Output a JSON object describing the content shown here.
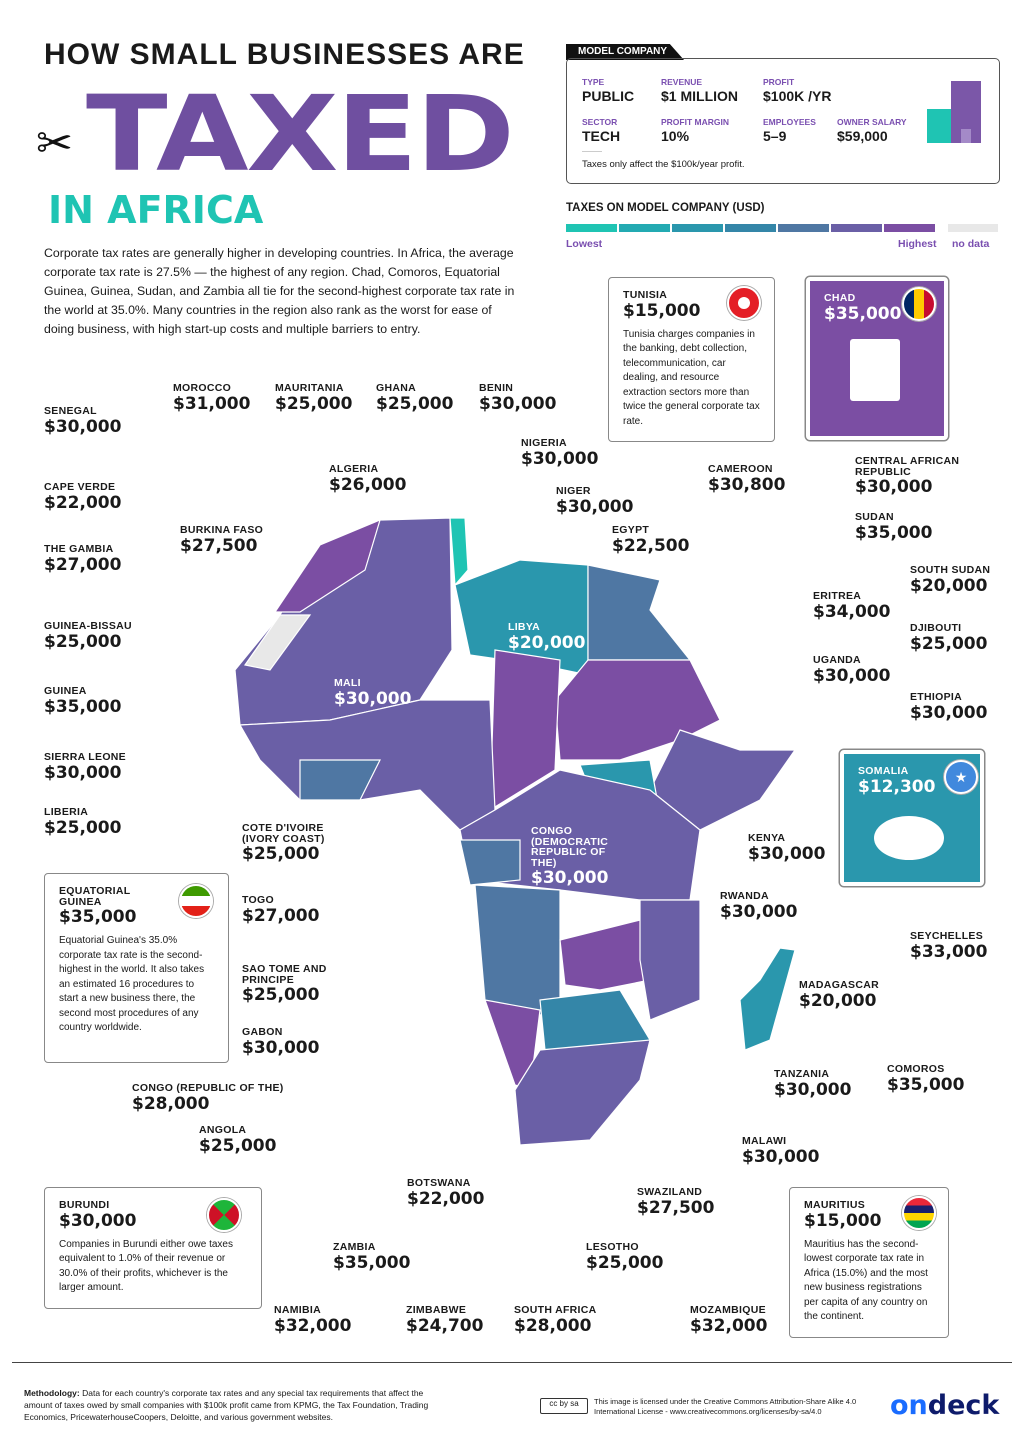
{
  "title": {
    "line1": "HOW SMALL BUSINESSES ARE",
    "line2": "TAXED",
    "line3": "IN AFRICA"
  },
  "intro": "Corporate tax rates are generally higher in developing countries. In Africa, the average corporate tax rate is 27.5% — the highest of any region. Chad, Comoros, Equatorial Guinea, Guinea, Sudan, and Zambia all tie for the second-highest corporate tax rate in the world at 35.0%. Many countries in the region also rank as the worst for ease of doing business, with high start-up costs and multiple barriers to entry.",
  "model_company": {
    "tab": "MODEL COMPANY",
    "fields": [
      {
        "label": "TYPE",
        "value": "PUBLIC"
      },
      {
        "label": "REVENUE",
        "value": "$1 MILLION"
      },
      {
        "label": "PROFIT",
        "value": "$100K /YR"
      },
      {
        "label": "SECTOR",
        "value": "TECH"
      },
      {
        "label": "PROFIT MARGIN",
        "value": "10%"
      },
      {
        "label": "EMPLOYEES",
        "value": "5–9"
      },
      {
        "label": "OWNER SALARY",
        "value": "$59,000"
      }
    ],
    "note": "Taxes only affect the $100k/year profit."
  },
  "legend": {
    "title": "TAXES ON MODEL COMPANY (USD)",
    "low": "Lowest",
    "high": "Highest",
    "nodata": "no data",
    "colors": [
      "#1fc4b3",
      "#23aab2",
      "#2a97ad",
      "#3486a8",
      "#4f77a3",
      "#6a5fa6",
      "#7b4ea3"
    ],
    "nodata_color": "#e8e8e8"
  },
  "countries": [
    {
      "name": "MOROCCO",
      "tax": "$31,000"
    },
    {
      "name": "MAURITANIA",
      "tax": "$25,000"
    },
    {
      "name": "GHANA",
      "tax": "$25,000"
    },
    {
      "name": "BENIN",
      "tax": "$30,000"
    },
    {
      "name": "SENEGAL",
      "tax": "$30,000"
    },
    {
      "name": "NIGERIA",
      "tax": "$30,000"
    },
    {
      "name": "ALGERIA",
      "tax": "$26,000"
    },
    {
      "name": "CAMEROON",
      "tax": "$30,800"
    },
    {
      "name": "CENTRAL AFRICAN REPUBLIC",
      "tax": "$30,000"
    },
    {
      "name": "CAPE VERDE",
      "tax": "$22,000"
    },
    {
      "name": "NIGER",
      "tax": "$30,000"
    },
    {
      "name": "BURKINA FASO",
      "tax": "$27,500"
    },
    {
      "name": "EGYPT",
      "tax": "$22,500"
    },
    {
      "name": "SUDAN",
      "tax": "$35,000"
    },
    {
      "name": "THE GAMBIA",
      "tax": "$27,000"
    },
    {
      "name": "SOUTH SUDAN",
      "tax": "$20,000"
    },
    {
      "name": "ERITREA",
      "tax": "$34,000"
    },
    {
      "name": "GUINEA-BISSAU",
      "tax": "$25,000"
    },
    {
      "name": "LIBYA",
      "tax": "$20,000"
    },
    {
      "name": "DJIBOUTI",
      "tax": "$25,000"
    },
    {
      "name": "UGANDA",
      "tax": "$30,000"
    },
    {
      "name": "MALI",
      "tax": "$30,000"
    },
    {
      "name": "GUINEA",
      "tax": "$35,000"
    },
    {
      "name": "ETHIOPIA",
      "tax": "$30,000"
    },
    {
      "name": "SIERRA LEONE",
      "tax": "$30,000"
    },
    {
      "name": "LIBERIA",
      "tax": "$25,000"
    },
    {
      "name": "COTE D'IVOIRE (IVORY COAST)",
      "tax": "$25,000"
    },
    {
      "name": "KENYA",
      "tax": "$30,000"
    },
    {
      "name": "CONGO (DEMOCRATIC REPUBLIC OF THE)",
      "tax": "$30,000"
    },
    {
      "name": "RWANDA",
      "tax": "$30,000"
    },
    {
      "name": "TOGO",
      "tax": "$27,000"
    },
    {
      "name": "SEYCHELLES",
      "tax": "$33,000"
    },
    {
      "name": "SAO TOME AND PRINCIPE",
      "tax": "$25,000"
    },
    {
      "name": "MADAGASCAR",
      "tax": "$20,000"
    },
    {
      "name": "GABON",
      "tax": "$30,000"
    },
    {
      "name": "COMOROS",
      "tax": "$35,000"
    },
    {
      "name": "TANZANIA",
      "tax": "$30,000"
    },
    {
      "name": "CONGO (REPUBLIC OF THE)",
      "tax": "$28,000"
    },
    {
      "name": "ANGOLA",
      "tax": "$25,000"
    },
    {
      "name": "MALAWI",
      "tax": "$30,000"
    },
    {
      "name": "BOTSWANA",
      "tax": "$22,000"
    },
    {
      "name": "SWAZILAND",
      "tax": "$27,500"
    },
    {
      "name": "ZAMBIA",
      "tax": "$35,000"
    },
    {
      "name": "LESOTHO",
      "tax": "$25,000"
    },
    {
      "name": "NAMIBIA",
      "tax": "$32,000"
    },
    {
      "name": "ZIMBABWE",
      "tax": "$24,700"
    },
    {
      "name": "SOUTH AFRICA",
      "tax": "$28,000"
    },
    {
      "name": "MOZAMBIQUE",
      "tax": "$32,000"
    }
  ],
  "callouts": {
    "tunisia": {
      "name": "TUNISIA",
      "tax": "$15,000",
      "text": "Tunisia charges companies in the banking, debt collection, telecommunication, car dealing, and resource extraction sectors more than twice the general corporate tax rate."
    },
    "chad": {
      "name": "CHAD",
      "tax": "$35,000"
    },
    "somalia": {
      "name": "SOMALIA",
      "tax": "$12,300"
    },
    "equatorial_guinea": {
      "name": "EQUATORIAL GUINEA",
      "tax": "$35,000",
      "text": "Equatorial Guinea's 35.0% corporate tax rate is the second-highest in the world. It also takes an estimated 16 procedures to start a new business there, the second most procedures of any country worldwide."
    },
    "burundi": {
      "name": "BURUNDI",
      "tax": "$30,000",
      "text": "Companies in Burundi either owe taxes equivalent to 1.0% of their revenue or 30.0% of their profits, whichever is the larger amount."
    },
    "mauritius": {
      "name": "MAURITIUS",
      "tax": "$15,000",
      "text": "Mauritius has the second-lowest corporate tax rate in Africa (15.0%) and the most new business registrations per capita of any country on the continent."
    }
  },
  "footer": {
    "methodology_label": "Methodology:",
    "methodology": "Data for each country's corporate tax rates and any special tax requirements that affect the amount of taxes owed by small companies with $100k profit came from KPMG, the Tax Foundation, Trading Economics, PricewaterhouseCoopers, Deloitte, and various government websites.",
    "license": "This image is licensed under the Creative Commons Attribution-Share Alike 4.0 International License - www.creativecommons.org/licenses/by-sa/4.0",
    "brand_on": "on",
    "brand_deck": "deck",
    "brand_colors": [
      "#1a6cff",
      "#0e1b6b"
    ]
  }
}
